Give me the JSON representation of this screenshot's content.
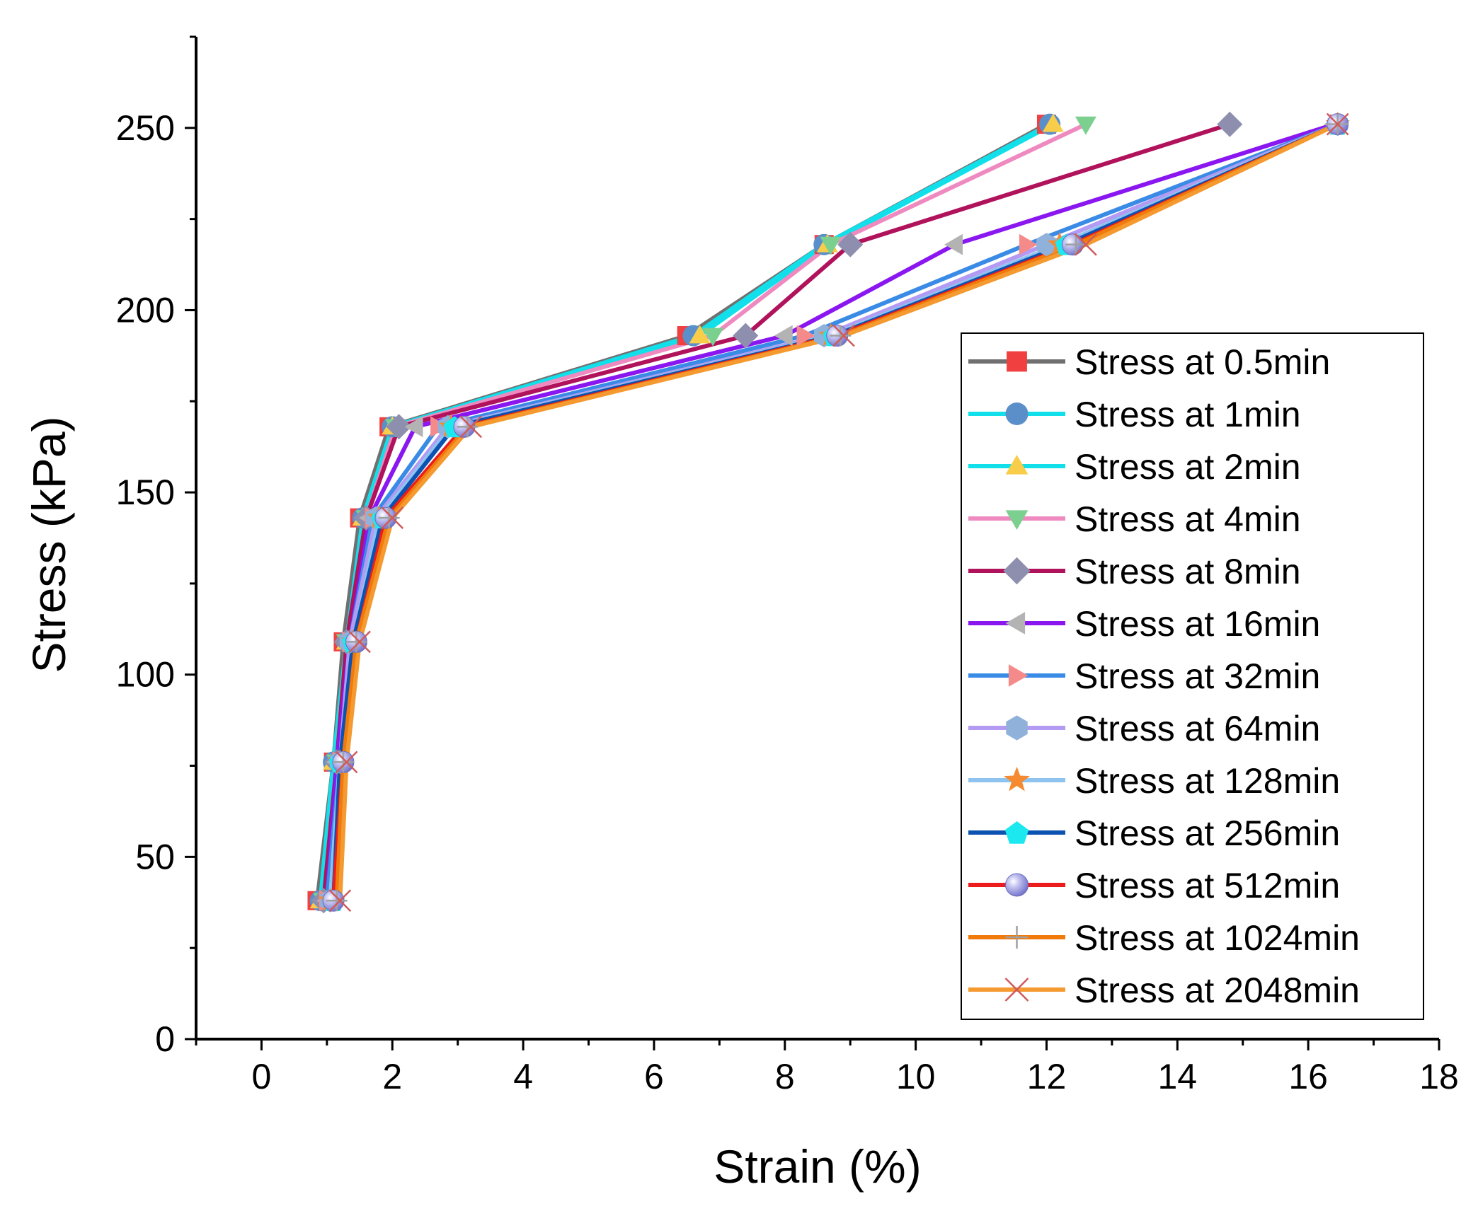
{
  "chart_data": {
    "type": "line",
    "title": "",
    "xlabel": "Strain (%)",
    "ylabel": "Stress (kPa)",
    "xlim": [
      -1,
      18
    ],
    "ylim": [
      0,
      275
    ],
    "xticks": [
      0,
      2,
      4,
      6,
      8,
      10,
      12,
      14,
      16,
      18
    ],
    "yticks": [
      0,
      50,
      100,
      150,
      200,
      250
    ],
    "y": [
      38,
      76,
      109,
      143,
      168,
      193,
      218,
      251
    ],
    "legend_position": "right",
    "series": [
      {
        "name": "Stress at 0.5min",
        "color": "#707070",
        "marker": "square",
        "marker_color": "#f04040",
        "x": [
          0.85,
          1.1,
          1.25,
          1.5,
          1.95,
          6.5,
          8.6,
          12.0
        ]
      },
      {
        "name": "Stress at 1min",
        "color": "#11e0ea",
        "marker": "circle",
        "marker_color": "#5b8fc9",
        "x": [
          0.9,
          1.1,
          1.3,
          1.55,
          2.0,
          6.6,
          8.6,
          12.05
        ]
      },
      {
        "name": "Stress at 2min",
        "color": "#11e0ea",
        "marker": "triangle-up",
        "marker_color": "#f8cd4a",
        "x": [
          0.9,
          1.1,
          1.3,
          1.55,
          2.0,
          6.7,
          8.65,
          12.1
        ]
      },
      {
        "name": "Stress at 4min",
        "color": "#ee8ac0",
        "marker": "triangle-down",
        "marker_color": "#7bd08f",
        "x": [
          0.95,
          1.15,
          1.3,
          1.6,
          2.05,
          6.9,
          8.7,
          12.6
        ]
      },
      {
        "name": "Stress at 8min",
        "color": "#b0125b",
        "marker": "diamond",
        "marker_color": "#8e8fae",
        "x": [
          0.95,
          1.15,
          1.3,
          1.6,
          2.1,
          7.4,
          9.0,
          14.8
        ]
      },
      {
        "name": "Stress at 16min",
        "color": "#8a16f0",
        "marker": "triangle-left",
        "marker_color": "#b3b3b3",
        "x": [
          1.0,
          1.15,
          1.35,
          1.65,
          2.35,
          8.0,
          10.6,
          16.4
        ]
      },
      {
        "name": "Stress at 32min",
        "color": "#3a8be6",
        "marker": "triangle-right",
        "marker_color": "#f58a8a",
        "x": [
          1.0,
          1.2,
          1.35,
          1.7,
          2.7,
          8.3,
          11.7,
          16.45
        ]
      },
      {
        "name": "Stress at 64min",
        "color": "#b39af2",
        "marker": "hexagon",
        "marker_color": "#8fb1da",
        "x": [
          1.05,
          1.2,
          1.35,
          1.75,
          2.85,
          8.6,
          12.0,
          16.45
        ]
      },
      {
        "name": "Stress at 128min",
        "color": "#8ec3f0",
        "marker": "star",
        "marker_color": "#f58a30",
        "x": [
          1.05,
          1.2,
          1.4,
          1.8,
          2.9,
          8.7,
          12.2,
          16.45
        ]
      },
      {
        "name": "Stress at 256min",
        "color": "#0c52b0",
        "marker": "pentagon",
        "marker_color": "#1ce8f0",
        "x": [
          1.1,
          1.2,
          1.4,
          1.85,
          2.95,
          8.75,
          12.3,
          16.45
        ]
      },
      {
        "name": "Stress at 512min",
        "color": "#ec1c1c",
        "marker": "sphere",
        "marker_color": "#9b9be6",
        "x": [
          1.1,
          1.25,
          1.45,
          1.9,
          3.1,
          8.8,
          12.4,
          16.45
        ]
      },
      {
        "name": "Stress at 1024min",
        "color": "#f07a0a",
        "marker": "plus",
        "marker_color": "#a0a0a0",
        "x": [
          1.15,
          1.25,
          1.45,
          1.95,
          3.15,
          8.85,
          12.45,
          16.45
        ]
      },
      {
        "name": "Stress at 2048min",
        "color": "#f49a30",
        "marker": "cross",
        "marker_color": "#d05a5a",
        "x": [
          1.2,
          1.3,
          1.5,
          2.0,
          3.2,
          8.9,
          12.6,
          16.45
        ]
      }
    ]
  }
}
